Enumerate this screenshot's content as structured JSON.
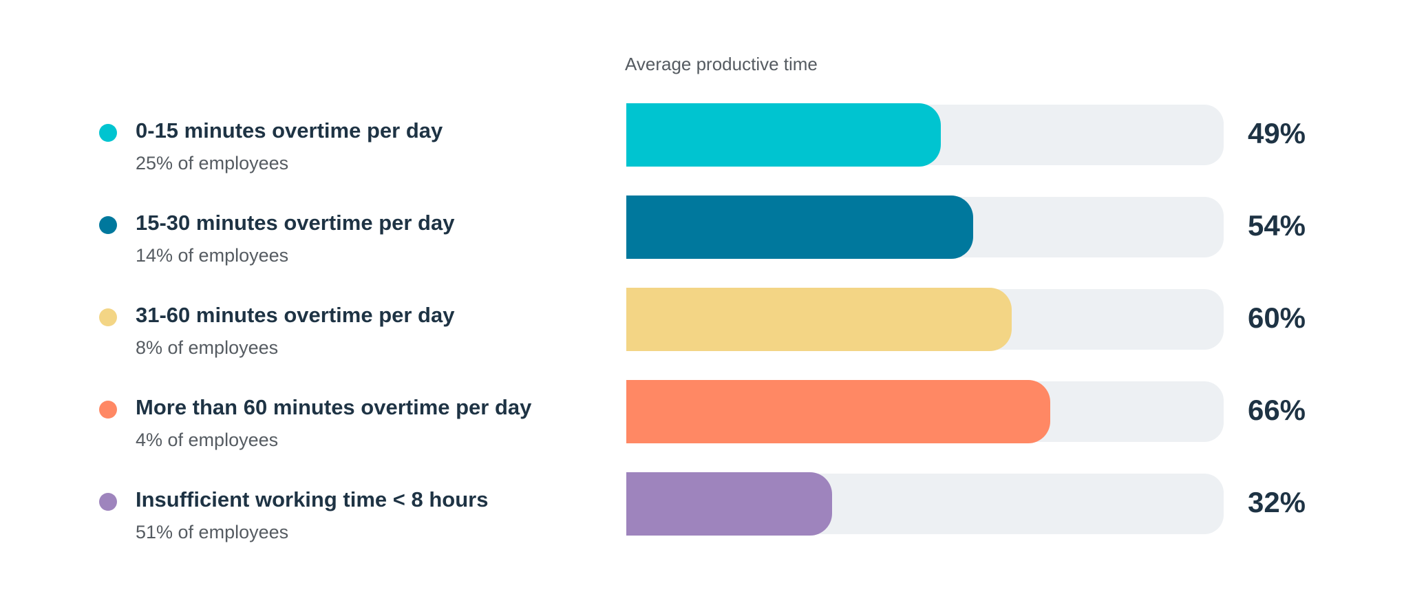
{
  "chart_data": {
    "type": "bar",
    "orientation": "horizontal",
    "title": "Average productive time",
    "categories": [
      "0-15 minutes overtime per day",
      "15-30 minutes overtime per day",
      "31-60 minutes overtime per day",
      "More than 60 minutes overtime per day",
      "Insufficient working time < 8 hours"
    ],
    "subcategories": [
      "25% of employees",
      "14% of employees",
      "8% of employees",
      "4% of employees",
      "51% of employees"
    ],
    "values": [
      49,
      54,
      60,
      66,
      32
    ],
    "value_labels": [
      "49%",
      "54%",
      "60%",
      "66%",
      "32%"
    ],
    "colors": [
      "#00c4d0",
      "#00789d",
      "#f3d585",
      "#ff8864",
      "#9e84bd"
    ],
    "track_color": "#edf0f3",
    "xlim": [
      0,
      93
    ],
    "grid": false,
    "legend": "left"
  }
}
